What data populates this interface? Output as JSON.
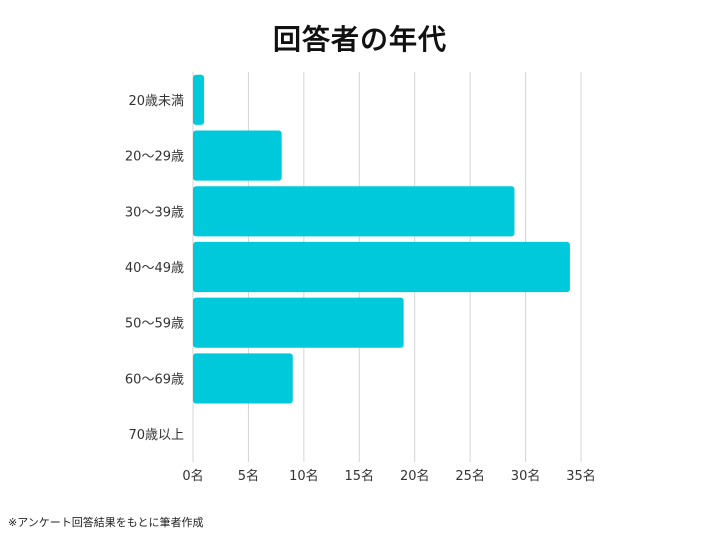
{
  "chart_data": {
    "type": "bar",
    "orientation": "horizontal",
    "title": "回答者の年代",
    "categories": [
      "20歳未満",
      "20～29歳",
      "30～39歳",
      "40～49歳",
      "50～59歳",
      "60～69歳",
      "70歳以上"
    ],
    "values": [
      1,
      8,
      29,
      34,
      19,
      9,
      0
    ],
    "xlim": [
      0,
      35
    ],
    "x_ticks": [
      "0名",
      "5名",
      "10名",
      "15名",
      "20名",
      "25名",
      "30名",
      "35名"
    ],
    "grid": true,
    "bar_color": "#00c9dc"
  },
  "footnote": "※アンケート回答結果をもとに筆者作成"
}
